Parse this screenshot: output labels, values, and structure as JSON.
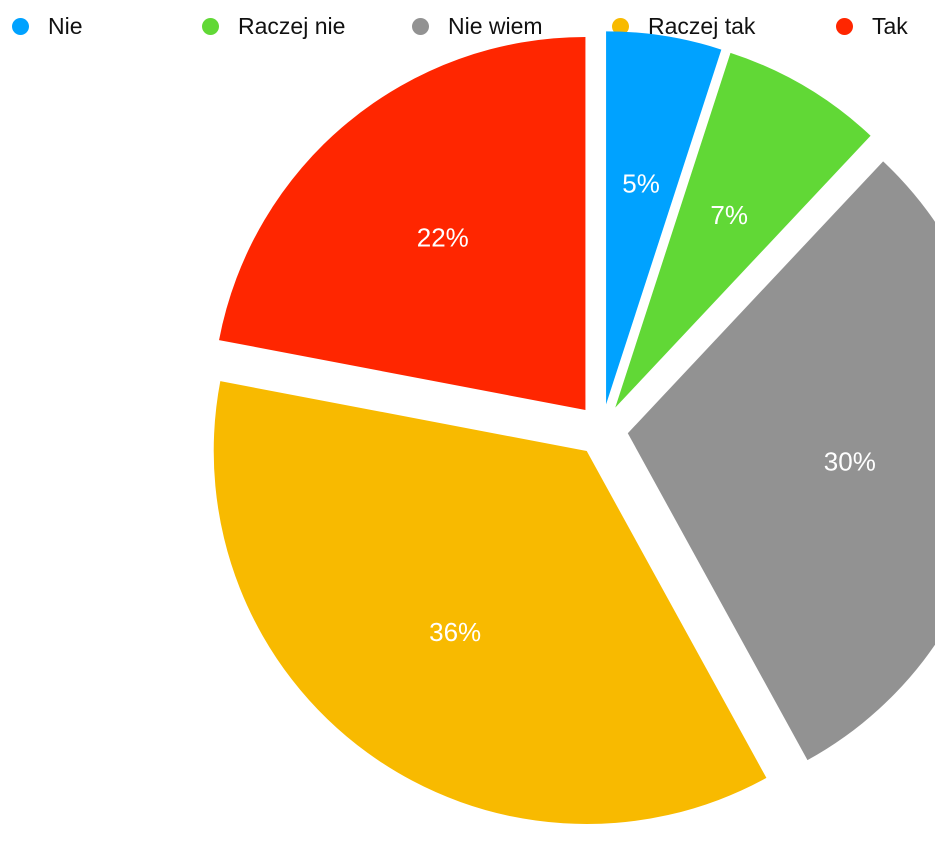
{
  "chart_data": {
    "type": "pie",
    "categories": [
      "Nie",
      "Raczej nie",
      "Nie wiem",
      "Raczej tak",
      "Tak"
    ],
    "values": [
      5,
      7,
      30,
      36,
      22
    ],
    "labels": [
      "5%",
      "7%",
      "30%",
      "36%",
      "22%"
    ],
    "colors": [
      "#00A2FF",
      "#61D836",
      "#929292",
      "#F8BA00",
      "#FF2600"
    ],
    "legend_position": "top",
    "exploded": true
  }
}
